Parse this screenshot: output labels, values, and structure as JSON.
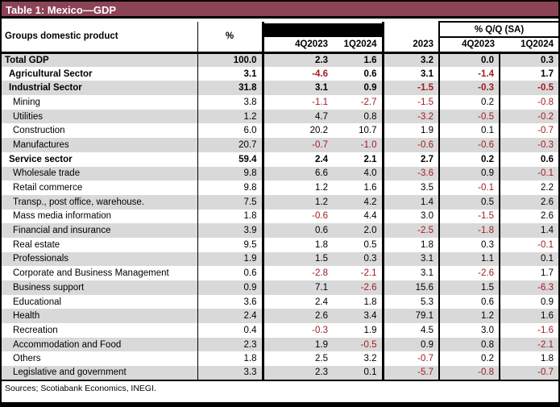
{
  "title": "Table 1: Mexico—GDP",
  "colors": {
    "title_bar": "#8D4356",
    "stripe": "#D9D9D9",
    "negative": "#A01D22",
    "border": "#000000",
    "black_cell": "#000000"
  },
  "header": {
    "groups_label": "Groups domestic product",
    "pct_label": "%",
    "black_cell": "",
    "period_cols": [
      "4Q2023",
      "1Q2024"
    ],
    "year_col": "2023",
    "qq_sa_label": "% Q/Q (SA)",
    "qq_sa_cols": [
      "4Q2023",
      "1Q2024"
    ]
  },
  "table": {
    "value_columns": [
      "%",
      "4Q2023",
      "1Q2024",
      "2023",
      "4Q2023 (SA)",
      "1Q2024 (SA)"
    ],
    "rows": [
      {
        "label": "Total GDP",
        "indent": 0,
        "bold": true,
        "values": [
          "100.0",
          "2.3",
          "1.6",
          "3.2",
          "0.0",
          "0.3"
        ]
      },
      {
        "label": "Agricultural Sector",
        "indent": 1,
        "bold": true,
        "values": [
          "3.1",
          "-4.6",
          "0.6",
          "3.1",
          "-1.4",
          "1.7"
        ]
      },
      {
        "label": "Industrial Sector",
        "indent": 1,
        "bold": true,
        "values": [
          "31.8",
          "3.1",
          "0.9",
          "-1.5",
          "-0.3",
          "-0.5"
        ]
      },
      {
        "label": "Mining",
        "indent": 2,
        "bold": false,
        "values": [
          "3.8",
          "-1.1",
          "-2.7",
          "-1.5",
          "0.2",
          "-0.8"
        ]
      },
      {
        "label": "Utilities",
        "indent": 2,
        "bold": false,
        "values": [
          "1.2",
          "4.7",
          "0.8",
          "-3.2",
          "-0.5",
          "-0.2"
        ]
      },
      {
        "label": "Construction",
        "indent": 2,
        "bold": false,
        "values": [
          "6.0",
          "20.2",
          "10.7",
          "1.9",
          "0.1",
          "-0.7"
        ]
      },
      {
        "label": "Manufactures",
        "indent": 2,
        "bold": false,
        "values": [
          "20.7",
          "-0.7",
          "-1.0",
          "-0.6",
          "-0.6",
          "-0.3"
        ]
      },
      {
        "label": "Service sector",
        "indent": 1,
        "bold": true,
        "values": [
          "59.4",
          "2.4",
          "2.1",
          "2.7",
          "0.2",
          "0.6"
        ]
      },
      {
        "label": "Wholesale trade",
        "indent": 2,
        "bold": false,
        "values": [
          "9.8",
          "6.6",
          "4.0",
          "-3.6",
          "0.9",
          "-0.1"
        ]
      },
      {
        "label": "Retail commerce",
        "indent": 2,
        "bold": false,
        "values": [
          "9.8",
          "1.2",
          "1.6",
          "3.5",
          "-0.1",
          "2.2"
        ]
      },
      {
        "label": "Transp., post office, warehouse.",
        "indent": 2,
        "bold": false,
        "values": [
          "7.5",
          "1.2",
          "4.2",
          "1.4",
          "0.5",
          "2.6"
        ]
      },
      {
        "label": "Mass media information",
        "indent": 2,
        "bold": false,
        "values": [
          "1.8",
          "-0.6",
          "4.4",
          "3.0",
          "-1.5",
          "2.6"
        ]
      },
      {
        "label": "Financial and insurance",
        "indent": 2,
        "bold": false,
        "values": [
          "3.9",
          "0.6",
          "2.0",
          "-2.5",
          "-1.8",
          "1.4"
        ]
      },
      {
        "label": "Real estate",
        "indent": 2,
        "bold": false,
        "values": [
          "9.5",
          "1.8",
          "0.5",
          "1.8",
          "0.3",
          "-0.1"
        ]
      },
      {
        "label": "Professionals",
        "indent": 2,
        "bold": false,
        "values": [
          "1.9",
          "1.5",
          "0.3",
          "3.1",
          "1.1",
          "0.1"
        ]
      },
      {
        "label": "Corporate and Business Management",
        "indent": 2,
        "bold": false,
        "values": [
          "0.6",
          "-2.8",
          "-2.1",
          "3.1",
          "-2.6",
          "1.7"
        ]
      },
      {
        "label": "Business support",
        "indent": 2,
        "bold": false,
        "values": [
          "0.9",
          "7.1",
          "-2.6",
          "15.6",
          "1.5",
          "-6.3"
        ]
      },
      {
        "label": "Educational",
        "indent": 2,
        "bold": false,
        "values": [
          "3.6",
          "2.4",
          "1.8",
          "5.3",
          "0.6",
          "0.9"
        ]
      },
      {
        "label": "Health",
        "indent": 2,
        "bold": false,
        "values": [
          "2.4",
          "2.6",
          "3.4",
          "79.1",
          "1.2",
          "1.6"
        ]
      },
      {
        "label": "Recreation",
        "indent": 2,
        "bold": false,
        "values": [
          "0.4",
          "-0.3",
          "1.9",
          "4.5",
          "3.0",
          "-1.6"
        ]
      },
      {
        "label": "Accommodation and Food",
        "indent": 2,
        "bold": false,
        "values": [
          "2.3",
          "1.9",
          "-0.5",
          "0.9",
          "0.8",
          "-2.1"
        ]
      },
      {
        "label": "Others",
        "indent": 2,
        "bold": false,
        "values": [
          "1.8",
          "2.5",
          "3.2",
          "-0.7",
          "0.2",
          "1.8"
        ]
      },
      {
        "label": "Legislative and government",
        "indent": 2,
        "bold": false,
        "values": [
          "3.3",
          "2.3",
          "0.1",
          "-5.7",
          "-0.8",
          "-0.7"
        ]
      }
    ]
  },
  "footer": "Sources; Scotiabank Economics, INEGI."
}
